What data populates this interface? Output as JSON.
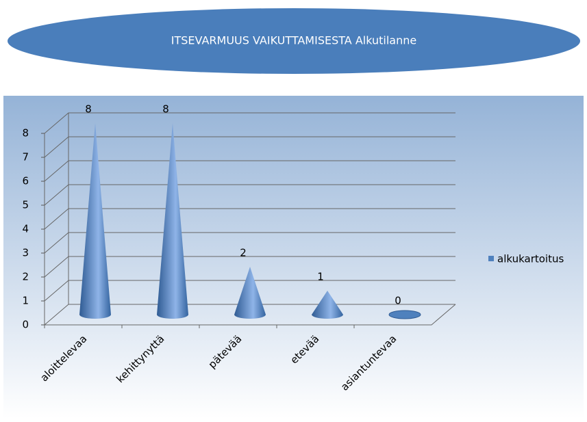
{
  "chart_data": {
    "type": "cone",
    "title": "ITSEVARMUUS  VAIKUTTAMISESTA  Alkutilanne",
    "categories": [
      "aloittelevaa",
      "kehittynyttä",
      "pätevää",
      "etevää",
      "asiantuntevaa"
    ],
    "series": [
      {
        "name": "alkukartoitus",
        "color": "#4f81bd",
        "values": [
          8,
          8,
          2,
          1,
          0
        ]
      }
    ],
    "ylim": [
      0,
      8
    ],
    "yticks": [
      0,
      1,
      2,
      3,
      4,
      5,
      6,
      7,
      8
    ],
    "grid": true,
    "legend": "right"
  }
}
